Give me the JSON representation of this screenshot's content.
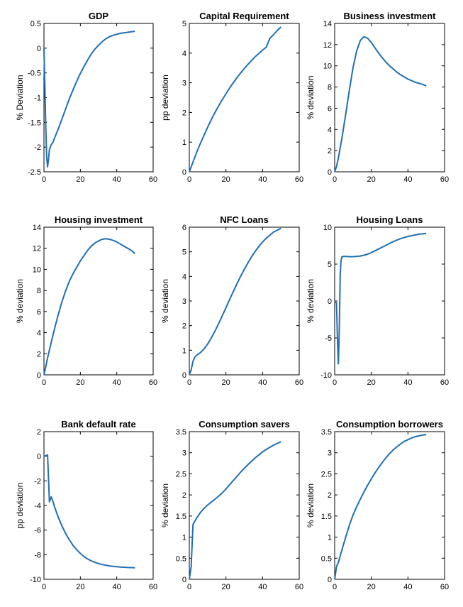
{
  "line_color": "#1f6fb5",
  "chart_data": [
    {
      "type": "line",
      "title": "GDP",
      "ylabel": "% Deviation",
      "xlim": [
        0,
        60
      ],
      "ylim": [
        -2.5,
        0.5
      ],
      "xticks": [
        0,
        20,
        40,
        60
      ],
      "yticks": [
        -2.5,
        -2,
        -1.5,
        -1,
        -0.5,
        0,
        0.5
      ],
      "x": [
        0,
        1,
        1.5,
        2,
        2.5,
        3,
        4,
        5,
        6,
        8,
        10,
        12,
        14,
        16,
        18,
        20,
        22,
        24,
        26,
        28,
        30,
        32,
        34,
        36,
        38,
        40,
        42,
        44,
        46,
        48,
        50
      ],
      "y": [
        0,
        -1.6,
        -2.2,
        -2.4,
        -2.25,
        -2.05,
        -1.95,
        -1.9,
        -1.8,
        -1.62,
        -1.42,
        -1.22,
        -1.02,
        -0.84,
        -0.67,
        -0.51,
        -0.37,
        -0.24,
        -0.12,
        -0.02,
        0.06,
        0.13,
        0.19,
        0.23,
        0.26,
        0.28,
        0.3,
        0.31,
        0.32,
        0.33,
        0.34
      ]
    },
    {
      "type": "line",
      "title": "Capital Requirement",
      "ylabel": "pp deviation",
      "xlim": [
        0,
        60
      ],
      "ylim": [
        0,
        5
      ],
      "xticks": [
        0,
        20,
        40,
        60
      ],
      "yticks": [
        0,
        1,
        2,
        3,
        4,
        5
      ],
      "x": [
        0,
        2,
        4,
        6,
        8,
        10,
        12,
        14,
        16,
        18,
        20,
        22,
        24,
        26,
        28,
        30,
        32,
        34,
        36,
        38,
        40,
        42,
        44,
        46,
        48,
        50
      ],
      "y": [
        0,
        0.33,
        0.65,
        0.95,
        1.23,
        1.5,
        1.76,
        2.0,
        2.22,
        2.43,
        2.63,
        2.82,
        3.0,
        3.17,
        3.33,
        3.48,
        3.62,
        3.75,
        3.88,
        3.99,
        4.1,
        4.2,
        4.5,
        4.62,
        4.76,
        4.88
      ]
    },
    {
      "type": "line",
      "title": "Business investment",
      "ylabel": "% deviation",
      "xlim": [
        0,
        60
      ],
      "ylim": [
        0,
        14
      ],
      "xticks": [
        0,
        20,
        40,
        60
      ],
      "yticks": [
        0,
        2,
        4,
        6,
        8,
        10,
        12,
        14
      ],
      "x": [
        0,
        1,
        2,
        4,
        6,
        8,
        10,
        12,
        14,
        16,
        18,
        20,
        22,
        24,
        26,
        28,
        30,
        32,
        34,
        36,
        38,
        40,
        42,
        44,
        46,
        48,
        50
      ],
      "y": [
        0,
        0.5,
        1.3,
        3.2,
        5.4,
        7.7,
        9.8,
        11.4,
        12.4,
        12.75,
        12.6,
        12.2,
        11.7,
        11.2,
        10.75,
        10.35,
        10.0,
        9.7,
        9.4,
        9.15,
        8.95,
        8.75,
        8.6,
        8.45,
        8.35,
        8.25,
        8.1
      ]
    },
    {
      "type": "line",
      "title": "Housing investment",
      "ylabel": "% deviation",
      "xlim": [
        0,
        60
      ],
      "ylim": [
        0,
        14
      ],
      "xticks": [
        0,
        20,
        40,
        60
      ],
      "yticks": [
        0,
        2,
        4,
        6,
        8,
        10,
        12,
        14
      ],
      "x": [
        0,
        1,
        2,
        4,
        6,
        8,
        10,
        12,
        14,
        16,
        18,
        20,
        22,
        24,
        26,
        28,
        30,
        32,
        34,
        36,
        38,
        40,
        42,
        44,
        46,
        48,
        50
      ],
      "y": [
        0,
        0.8,
        1.6,
        3.1,
        4.5,
        5.8,
        7.0,
        8.0,
        8.9,
        9.6,
        10.2,
        10.8,
        11.3,
        11.8,
        12.2,
        12.5,
        12.7,
        12.85,
        12.9,
        12.85,
        12.75,
        12.6,
        12.4,
        12.2,
        12.0,
        11.8,
        11.5
      ]
    },
    {
      "type": "line",
      "title": "NFC Loans",
      "ylabel": "% deviation",
      "xlim": [
        0,
        60
      ],
      "ylim": [
        0,
        6
      ],
      "xticks": [
        0,
        20,
        40,
        60
      ],
      "yticks": [
        0,
        1,
        2,
        3,
        4,
        5,
        6
      ],
      "x": [
        0,
        1,
        2,
        3,
        4,
        6,
        8,
        10,
        12,
        14,
        16,
        18,
        20,
        22,
        24,
        26,
        28,
        30,
        32,
        34,
        36,
        38,
        40,
        42,
        44,
        46,
        48,
        50
      ],
      "y": [
        0,
        0.2,
        0.55,
        0.72,
        0.8,
        0.9,
        1.05,
        1.25,
        1.5,
        1.78,
        2.08,
        2.4,
        2.73,
        3.06,
        3.38,
        3.7,
        4.0,
        4.28,
        4.55,
        4.8,
        5.02,
        5.22,
        5.4,
        5.55,
        5.68,
        5.8,
        5.88,
        5.95
      ]
    },
    {
      "type": "line",
      "title": "Housing Loans",
      "ylabel": "% deviation",
      "xlim": [
        0,
        60
      ],
      "ylim": [
        -10,
        10
      ],
      "xticks": [
        0,
        20,
        40,
        60
      ],
      "yticks": [
        -10,
        -5,
        0,
        5,
        10
      ],
      "x": [
        0,
        0.5,
        1,
        1.5,
        2,
        2.5,
        3,
        3.5,
        4,
        5,
        6,
        8,
        10,
        12,
        14,
        16,
        18,
        20,
        22,
        24,
        26,
        28,
        30,
        32,
        34,
        36,
        38,
        40,
        42,
        44,
        46,
        48,
        50
      ],
      "y": [
        0,
        -0.1,
        -0.3,
        -5.0,
        -8.5,
        -4.0,
        3.5,
        5.5,
        6.0,
        6.05,
        6.05,
        6.0,
        6.0,
        6.05,
        6.1,
        6.2,
        6.35,
        6.55,
        6.8,
        7.05,
        7.3,
        7.55,
        7.8,
        8.05,
        8.25,
        8.45,
        8.6,
        8.75,
        8.85,
        8.95,
        9.05,
        9.1,
        9.15
      ]
    },
    {
      "type": "line",
      "title": "Bank default rate",
      "ylabel": "pp deviation",
      "xlim": [
        0,
        60
      ],
      "ylim": [
        -10,
        2
      ],
      "xticks": [
        0,
        20,
        40,
        60
      ],
      "yticks": [
        -10,
        -8,
        -6,
        -4,
        -2,
        0,
        2
      ],
      "x": [
        0,
        1,
        2,
        3,
        4,
        5,
        6,
        8,
        10,
        12,
        14,
        16,
        18,
        20,
        22,
        24,
        26,
        28,
        30,
        32,
        34,
        36,
        38,
        40,
        42,
        44,
        46,
        48,
        50
      ],
      "y": [
        0,
        0.05,
        0.1,
        -3.7,
        -3.3,
        -3.7,
        -4.2,
        -5.0,
        -5.7,
        -6.3,
        -6.8,
        -7.25,
        -7.6,
        -7.9,
        -8.15,
        -8.35,
        -8.5,
        -8.62,
        -8.72,
        -8.8,
        -8.86,
        -8.91,
        -8.95,
        -8.98,
        -9.0,
        -9.02,
        -9.04,
        -9.05,
        -9.06
      ]
    },
    {
      "type": "line",
      "title": "Consumption savers",
      "ylabel": "% deviation",
      "xlim": [
        0,
        60
      ],
      "ylim": [
        0,
        3.5
      ],
      "xticks": [
        0,
        20,
        40,
        60
      ],
      "yticks": [
        0,
        0.5,
        1,
        1.5,
        2,
        2.5,
        3,
        3.5
      ],
      "x": [
        0,
        1,
        2,
        3,
        4,
        6,
        8,
        10,
        12,
        14,
        16,
        18,
        20,
        22,
        24,
        26,
        28,
        30,
        32,
        34,
        36,
        38,
        40,
        42,
        44,
        46,
        48,
        50
      ],
      "y": [
        0,
        0.3,
        1.3,
        1.38,
        1.45,
        1.58,
        1.68,
        1.76,
        1.83,
        1.9,
        1.97,
        2.05,
        2.14,
        2.24,
        2.34,
        2.44,
        2.54,
        2.63,
        2.72,
        2.8,
        2.88,
        2.95,
        3.02,
        3.08,
        3.13,
        3.18,
        3.22,
        3.26
      ]
    },
    {
      "type": "line",
      "title": "Consumption borrowers",
      "ylabel": "% deviation",
      "xlim": [
        0,
        60
      ],
      "ylim": [
        0,
        3.5
      ],
      "xticks": [
        0,
        20,
        40,
        60
      ],
      "yticks": [
        0,
        0.5,
        1,
        1.5,
        2,
        2.5,
        3,
        3.5
      ],
      "x": [
        0,
        1,
        2,
        4,
        6,
        8,
        10,
        12,
        14,
        16,
        18,
        20,
        22,
        24,
        26,
        28,
        30,
        32,
        34,
        36,
        38,
        40,
        42,
        44,
        46,
        48,
        50
      ],
      "y": [
        0,
        0.3,
        0.4,
        0.7,
        1.0,
        1.28,
        1.52,
        1.72,
        1.9,
        2.07,
        2.23,
        2.38,
        2.52,
        2.65,
        2.77,
        2.88,
        2.98,
        3.07,
        3.14,
        3.21,
        3.27,
        3.31,
        3.35,
        3.38,
        3.4,
        3.42,
        3.43
      ]
    }
  ]
}
